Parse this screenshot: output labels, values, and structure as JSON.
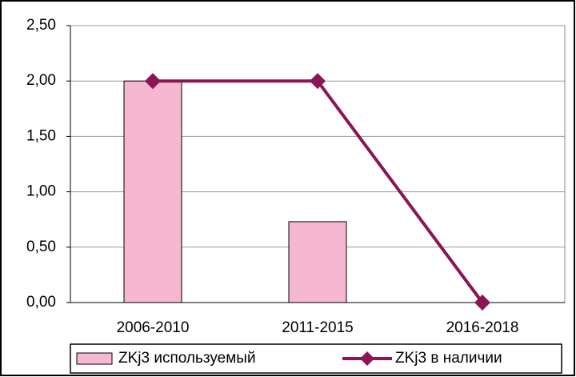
{
  "chart_data": {
    "type": "bar",
    "categories": [
      "2006-2010",
      "2011-2015",
      "2016-2018"
    ],
    "series": [
      {
        "name": "ZKj3 используемый",
        "type": "bar",
        "color": "#f5b8d0",
        "values": [
          2.0,
          0.73,
          0
        ]
      },
      {
        "name": "ZKj3 в наличии",
        "type": "line",
        "color": "#8a1654",
        "values": [
          2.0,
          2.0,
          0.0
        ]
      }
    ],
    "ylim": [
      0,
      2.5
    ],
    "yticks": [
      {
        "value": 0,
        "label": "0,00"
      },
      {
        "value": 0.5,
        "label": "0,50"
      },
      {
        "value": 1,
        "label": "1,00"
      },
      {
        "value": 1.5,
        "label": "1,50"
      },
      {
        "value": 2,
        "label": "2,00"
      },
      {
        "value": 2.5,
        "label": "2,50"
      }
    ],
    "grid": true,
    "legend": "bottom"
  }
}
